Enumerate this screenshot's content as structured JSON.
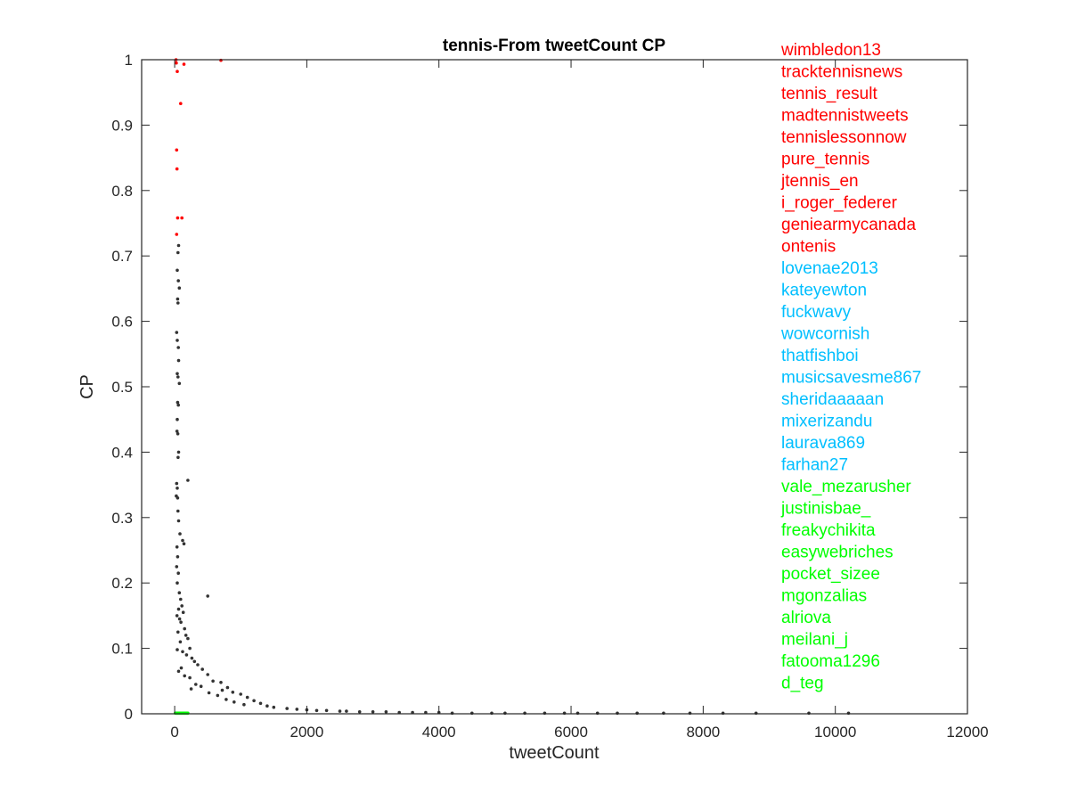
{
  "chart_data": {
    "type": "scatter",
    "title": "tennis-From tweetCount CP",
    "xlabel": "tweetCount",
    "ylabel": "CP",
    "xlim": [
      -500,
      12000
    ],
    "ylim": [
      0,
      1
    ],
    "xticks": [
      0,
      2000,
      4000,
      6000,
      8000,
      10000,
      12000
    ],
    "xtick_labels": [
      "0",
      "2000",
      "4000",
      "6000",
      "8000",
      "10000",
      "12000"
    ],
    "yticks": [
      0,
      0.1,
      0.2,
      0.3,
      0.4,
      0.5,
      0.6,
      0.7,
      0.8,
      0.9,
      1
    ],
    "ytick_labels": [
      "0",
      "0.1",
      "0.2",
      "0.3",
      "0.4",
      "0.5",
      "0.6",
      "0.7",
      "0.8",
      "0.9",
      "1"
    ],
    "grid": false,
    "legend_placement": "right-inside",
    "series": [
      {
        "color": "#ff0000",
        "points": [
          [
            20,
            1.0
          ],
          [
            25,
            0.995
          ],
          [
            140,
            0.993
          ],
          [
            700,
            0.999
          ],
          [
            40,
            0.982
          ],
          [
            90,
            0.933
          ],
          [
            30,
            0.862
          ],
          [
            35,
            0.833
          ],
          [
            45,
            0.758
          ],
          [
            110,
            0.758
          ],
          [
            30,
            0.733
          ]
        ]
      },
      {
        "color": "#333333",
        "points": [
          [
            60,
            0.716
          ],
          [
            50,
            0.705
          ],
          [
            40,
            0.678
          ],
          [
            55,
            0.662
          ],
          [
            70,
            0.651
          ],
          [
            45,
            0.634
          ],
          [
            50,
            0.628
          ],
          [
            30,
            0.583
          ],
          [
            40,
            0.571
          ],
          [
            55,
            0.56
          ],
          [
            60,
            0.54
          ],
          [
            40,
            0.52
          ],
          [
            50,
            0.515
          ],
          [
            70,
            0.505
          ],
          [
            45,
            0.476
          ],
          [
            55,
            0.472
          ],
          [
            40,
            0.45
          ],
          [
            35,
            0.432
          ],
          [
            48,
            0.428
          ],
          [
            60,
            0.4
          ],
          [
            52,
            0.392
          ],
          [
            30,
            0.352
          ],
          [
            200,
            0.357
          ],
          [
            40,
            0.345
          ],
          [
            25,
            0.333
          ],
          [
            45,
            0.33
          ],
          [
            50,
            0.31
          ],
          [
            60,
            0.295
          ],
          [
            80,
            0.275
          ],
          [
            120,
            0.265
          ],
          [
            140,
            0.26
          ],
          [
            35,
            0.255
          ],
          [
            45,
            0.24
          ],
          [
            30,
            0.225
          ],
          [
            55,
            0.215
          ],
          [
            40,
            0.2
          ],
          [
            500,
            0.18
          ],
          [
            70,
            0.185
          ],
          [
            90,
            0.175
          ],
          [
            110,
            0.165
          ],
          [
            60,
            0.16
          ],
          [
            130,
            0.155
          ],
          [
            35,
            0.15
          ],
          [
            75,
            0.145
          ],
          [
            95,
            0.14
          ],
          [
            150,
            0.13
          ],
          [
            50,
            0.125
          ],
          [
            170,
            0.12
          ],
          [
            200,
            0.115
          ],
          [
            85,
            0.11
          ],
          [
            230,
            0.1
          ],
          [
            40,
            0.098
          ],
          [
            120,
            0.095
          ],
          [
            180,
            0.09
          ],
          [
            260,
            0.085
          ],
          [
            300,
            0.08
          ],
          [
            350,
            0.075
          ],
          [
            100,
            0.07
          ],
          [
            420,
            0.068
          ],
          [
            60,
            0.065
          ],
          [
            500,
            0.06
          ],
          [
            150,
            0.058
          ],
          [
            230,
            0.055
          ],
          [
            580,
            0.05
          ],
          [
            700,
            0.048
          ],
          [
            320,
            0.045
          ],
          [
            400,
            0.042
          ],
          [
            800,
            0.04
          ],
          [
            250,
            0.038
          ],
          [
            720,
            0.036
          ],
          [
            880,
            0.033
          ],
          [
            520,
            0.032
          ],
          [
            1000,
            0.03
          ],
          [
            650,
            0.028
          ],
          [
            1100,
            0.025
          ],
          [
            780,
            0.022
          ],
          [
            1200,
            0.02
          ],
          [
            900,
            0.018
          ],
          [
            1300,
            0.016
          ],
          [
            1050,
            0.014
          ],
          [
            1400,
            0.012
          ],
          [
            1500,
            0.01
          ],
          [
            1700,
            0.008
          ],
          [
            1850,
            0.007
          ],
          [
            2000,
            0.006
          ],
          [
            2150,
            0.005
          ],
          [
            2300,
            0.005
          ],
          [
            2500,
            0.004
          ],
          [
            2600,
            0.004
          ],
          [
            2800,
            0.003
          ],
          [
            3000,
            0.003
          ],
          [
            3200,
            0.003
          ],
          [
            3400,
            0.002
          ],
          [
            3600,
            0.002
          ],
          [
            3800,
            0.002
          ],
          [
            4000,
            0.002
          ],
          [
            4200,
            0.001
          ],
          [
            4500,
            0.001
          ],
          [
            4800,
            0.001
          ],
          [
            5000,
            0.001
          ],
          [
            5300,
            0.001
          ],
          [
            5600,
            0.001
          ],
          [
            5900,
            0.001
          ],
          [
            6100,
            0.001
          ],
          [
            6400,
            0.001
          ],
          [
            6700,
            0.001
          ],
          [
            7000,
            0.001
          ],
          [
            7400,
            0.001
          ],
          [
            7800,
            0.001
          ],
          [
            8300,
            0.001
          ],
          [
            8800,
            0.001
          ],
          [
            9600,
            0.001
          ],
          [
            10200,
            0.001
          ]
        ]
      },
      {
        "color": "#00ff00",
        "points": [
          [
            10,
            0.001
          ],
          [
            20,
            0.001
          ],
          [
            30,
            0.001
          ],
          [
            40,
            0.001
          ],
          [
            50,
            0.001
          ],
          [
            60,
            0.001
          ],
          [
            70,
            0.001
          ],
          [
            80,
            0.001
          ],
          [
            90,
            0.001
          ],
          [
            100,
            0.001
          ],
          [
            110,
            0.001
          ],
          [
            120,
            0.001
          ],
          [
            130,
            0.001
          ],
          [
            140,
            0.001
          ],
          [
            150,
            0.001
          ],
          [
            160,
            0.001
          ],
          [
            170,
            0.001
          ],
          [
            180,
            0.001
          ],
          [
            190,
            0.001
          ],
          [
            200,
            0.001
          ]
        ]
      }
    ],
    "annotations": [
      {
        "text": "wimbledon13",
        "color": "#ff0000"
      },
      {
        "text": "tracktennisnews",
        "color": "#ff0000"
      },
      {
        "text": "tennis_result",
        "color": "#ff0000"
      },
      {
        "text": "madtennistweets",
        "color": "#ff0000"
      },
      {
        "text": "tennislessonnow",
        "color": "#ff0000"
      },
      {
        "text": "pure_tennis",
        "color": "#ff0000"
      },
      {
        "text": "jtennis_en",
        "color": "#ff0000"
      },
      {
        "text": "i_roger_federer",
        "color": "#ff0000"
      },
      {
        "text": "geniearmycanada",
        "color": "#ff0000"
      },
      {
        "text": "ontenis",
        "color": "#ff0000"
      },
      {
        "text": "lovenae2013",
        "color": "#00bfff"
      },
      {
        "text": "kateyewton",
        "color": "#00bfff"
      },
      {
        "text": "fuckwavy",
        "color": "#00bfff"
      },
      {
        "text": "wowcornish",
        "color": "#00bfff"
      },
      {
        "text": "thatfishboi",
        "color": "#00bfff"
      },
      {
        "text": "musicsavesme867",
        "color": "#00bfff"
      },
      {
        "text": "sheridaaaaan",
        "color": "#00bfff"
      },
      {
        "text": "mixerizandu",
        "color": "#00bfff"
      },
      {
        "text": "laurava869",
        "color": "#00bfff"
      },
      {
        "text": "farhan27",
        "color": "#00bfff"
      },
      {
        "text": "vale_mezarusher",
        "color": "#00ff00"
      },
      {
        "text": "justinisbae_",
        "color": "#00ff00"
      },
      {
        "text": "freakychikita",
        "color": "#00ff00"
      },
      {
        "text": "easywebriches",
        "color": "#00ff00"
      },
      {
        "text": "pocket_sizee",
        "color": "#00ff00"
      },
      {
        "text": "mgonzalias",
        "color": "#00ff00"
      },
      {
        "text": "alriova",
        "color": "#00ff00"
      },
      {
        "text": "meilani_j",
        "color": "#00ff00"
      },
      {
        "text": "fatooma1296",
        "color": "#00ff00"
      },
      {
        "text": "d_teg",
        "color": "#00ff00"
      }
    ]
  }
}
